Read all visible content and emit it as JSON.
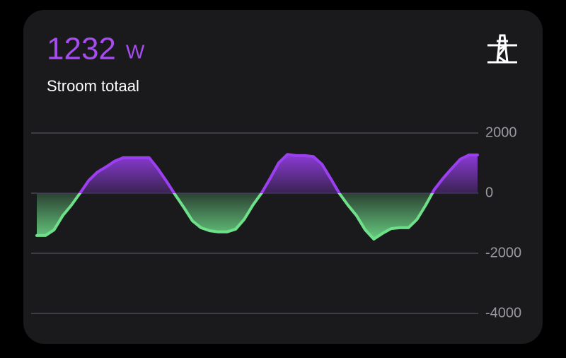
{
  "card": {
    "value": 1232,
    "unit": "W",
    "name": "Stroom totaal"
  },
  "chart_data": {
    "type": "area",
    "values": [
      -1410,
      -1410,
      -1220,
      -750,
      -400,
      0,
      420,
      700,
      870,
      1060,
      1180,
      1180,
      1180,
      1180,
      820,
      400,
      -50,
      -470,
      -920,
      -1150,
      -1250,
      -1290,
      -1290,
      -1200,
      -870,
      -400,
      0,
      490,
      1010,
      1290,
      1250,
      1250,
      1220,
      960,
      490,
      0,
      -400,
      -750,
      -1220,
      -1530,
      -1340,
      -1180,
      -1150,
      -1150,
      -870,
      -400,
      120,
      490,
      820,
      1130,
      1270,
      1270
    ],
    "color_positive": "#9b3ff0",
    "color_negative": "#6fe08a",
    "ylim": [
      -4000,
      2000
    ],
    "yticks": [
      2000,
      0,
      -2000,
      -4000
    ],
    "grid": true
  }
}
